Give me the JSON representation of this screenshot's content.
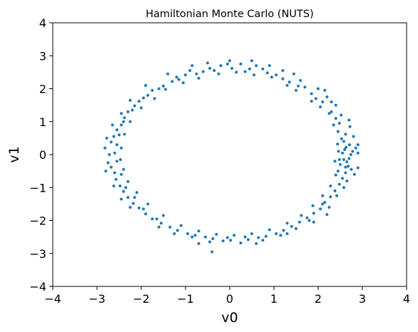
{
  "chart_data": {
    "type": "scatter",
    "title": "Hamiltonian Monte Carlo (NUTS)",
    "xlabel": "v0",
    "ylabel": "v1",
    "xlim": [
      -4,
      4
    ],
    "ylim": [
      -4,
      4
    ],
    "xticks": [
      "−4",
      "−3",
      "−2",
      "−1",
      "0",
      "1",
      "2",
      "3",
      "4"
    ],
    "yticks": [
      "−4",
      "−3",
      "−2",
      "−1",
      "0",
      "1",
      "2",
      "3",
      "4"
    ],
    "grid": false,
    "legend": "none",
    "marker_color": "#1f77b4",
    "description_of_distribution": null,
    "series": [
      {
        "points": [
          [
            2.74,
            0.0
          ],
          [
            2.71,
            0.3
          ],
          [
            2.62,
            0.62
          ],
          [
            2.48,
            0.95
          ],
          [
            2.3,
            1.3
          ],
          [
            2.1,
            1.6
          ],
          [
            1.85,
            1.85
          ],
          [
            1.55,
            2.08
          ],
          [
            1.2,
            2.3
          ],
          [
            0.85,
            2.48
          ],
          [
            0.45,
            2.6
          ],
          [
            0.05,
            2.62
          ],
          [
            -0.35,
            2.55
          ],
          [
            -0.75,
            2.45
          ],
          [
            -1.15,
            2.28
          ],
          [
            -1.5,
            2.08
          ],
          [
            -1.85,
            1.8
          ],
          [
            -2.15,
            1.48
          ],
          [
            -2.38,
            1.12
          ],
          [
            -2.55,
            0.75
          ],
          [
            -2.68,
            0.38
          ],
          [
            -2.72,
            0.0
          ],
          [
            -2.68,
            -0.38
          ],
          [
            -2.57,
            -0.75
          ],
          [
            -2.4,
            -1.12
          ],
          [
            -2.18,
            -1.48
          ],
          [
            -1.9,
            -1.8
          ],
          [
            -1.55,
            -2.08
          ],
          [
            -1.18,
            -2.3
          ],
          [
            -0.78,
            -2.45
          ],
          [
            -0.38,
            -2.55
          ],
          [
            0.02,
            -2.6
          ],
          [
            0.42,
            -2.58
          ],
          [
            0.82,
            -2.48
          ],
          [
            1.22,
            -2.3
          ],
          [
            1.58,
            -2.05
          ],
          [
            1.9,
            -1.78
          ],
          [
            2.15,
            -1.45
          ],
          [
            2.38,
            -1.1
          ],
          [
            2.55,
            -0.72
          ],
          [
            2.68,
            -0.35
          ],
          [
            2.85,
            0.2
          ],
          [
            2.58,
            -0.15
          ],
          [
            2.9,
            -0.4
          ],
          [
            2.52,
            1.2
          ],
          [
            2.2,
            1.75
          ],
          [
            1.7,
            2.05
          ],
          [
            1.35,
            2.2
          ],
          [
            0.6,
            2.7
          ],
          [
            0.25,
            2.75
          ],
          [
            -0.2,
            2.7
          ],
          [
            -0.6,
            2.52
          ],
          [
            -1.0,
            2.42
          ],
          [
            -1.3,
            2.22
          ],
          [
            -1.75,
            1.95
          ],
          [
            -2.05,
            1.62
          ],
          [
            -2.3,
            1.3
          ],
          [
            -2.45,
            0.9
          ],
          [
            -2.62,
            0.55
          ],
          [
            -2.82,
            0.2
          ],
          [
            -2.75,
            -0.25
          ],
          [
            -2.6,
            -0.55
          ],
          [
            -2.48,
            -0.95
          ],
          [
            -2.3,
            -1.3
          ],
          [
            -2.05,
            -1.62
          ],
          [
            -1.75,
            -1.95
          ],
          [
            -1.35,
            -2.2
          ],
          [
            -0.95,
            -2.4
          ],
          [
            -0.55,
            -2.5
          ],
          [
            -0.15,
            -2.62
          ],
          [
            0.25,
            -2.68
          ],
          [
            0.65,
            -2.52
          ],
          [
            1.05,
            -2.4
          ],
          [
            1.4,
            -2.18
          ],
          [
            1.75,
            -1.92
          ],
          [
            2.05,
            -1.65
          ],
          [
            2.28,
            -1.28
          ],
          [
            2.48,
            -0.9
          ],
          [
            2.62,
            -0.55
          ],
          [
            2.8,
            0.55
          ],
          [
            2.72,
            0.85
          ],
          [
            2.58,
            0.4
          ],
          [
            2.45,
            0.7
          ],
          [
            2.4,
            1.5
          ],
          [
            2.78,
            0.1
          ],
          [
            2.65,
            -0.22
          ],
          [
            2.9,
            0.3
          ],
          [
            2.6,
            0.15
          ],
          [
            2.5,
            -0.3
          ],
          [
            2.82,
            -0.6
          ],
          [
            2.45,
            -0.5
          ],
          [
            2.7,
            1.05
          ],
          [
            2.35,
            0.9
          ],
          [
            2.15,
            1.95
          ],
          [
            1.95,
            1.7
          ],
          [
            1.6,
            2.25
          ],
          [
            1.05,
            2.42
          ],
          [
            0.75,
            2.6
          ],
          [
            0.35,
            2.52
          ],
          [
            -0.05,
            2.75
          ],
          [
            -0.45,
            2.62
          ],
          [
            -0.9,
            2.55
          ],
          [
            -1.2,
            2.35
          ],
          [
            -1.6,
            2.0
          ],
          [
            -1.95,
            1.72
          ],
          [
            -2.2,
            1.35
          ],
          [
            -2.4,
            1.0
          ],
          [
            -2.5,
            0.6
          ],
          [
            -2.55,
            0.3
          ],
          [
            -2.6,
            0.05
          ],
          [
            -2.55,
            -0.2
          ],
          [
            -2.45,
            -0.6
          ],
          [
            -2.35,
            -1.0
          ],
          [
            -2.15,
            -1.3
          ],
          [
            -1.95,
            -1.65
          ],
          [
            -1.65,
            -1.95
          ],
          [
            -1.25,
            -2.4
          ],
          [
            -0.85,
            -2.5
          ],
          [
            -0.45,
            -2.65
          ],
          [
            -0.05,
            -2.52
          ],
          [
            0.35,
            -2.5
          ],
          [
            0.75,
            -2.6
          ],
          [
            1.15,
            -2.45
          ],
          [
            1.5,
            -2.25
          ],
          [
            1.8,
            -2.0
          ],
          [
            2.1,
            -1.5
          ],
          [
            2.25,
            -1.6
          ],
          [
            2.42,
            -1.25
          ],
          [
            2.58,
            -1.0
          ],
          [
            2.65,
            -0.8
          ],
          [
            2.75,
            -0.45
          ],
          [
            2.9,
            0.05
          ],
          [
            -2.25,
            1.65
          ],
          [
            -2.45,
            1.25
          ],
          [
            -2.65,
            0.9
          ],
          [
            -2.78,
            0.5
          ],
          [
            -2.8,
            -0.5
          ],
          [
            -2.62,
            -0.95
          ],
          [
            -2.45,
            -1.35
          ],
          [
            -2.25,
            -1.6
          ],
          [
            -1.6,
            -2.2
          ],
          [
            -0.7,
            -2.7
          ],
          [
            -0.4,
            -2.95
          ],
          [
            0.6,
            -2.7
          ],
          [
            1.3,
            -2.4
          ],
          [
            1.9,
            -2.05
          ],
          [
            2.2,
            -1.82
          ],
          [
            2.3,
            1.6
          ],
          [
            2.0,
            2.0
          ],
          [
            1.45,
            2.45
          ],
          [
            1.2,
            2.55
          ],
          [
            0.9,
            2.7
          ],
          [
            0.5,
            2.85
          ],
          [
            0.0,
            2.85
          ],
          [
            -0.5,
            2.78
          ],
          [
            -0.85,
            2.7
          ],
          [
            -1.4,
            2.45
          ],
          [
            -1.9,
            2.1
          ],
          [
            2.63,
            0.22
          ],
          [
            2.55,
            0.05
          ],
          [
            2.7,
            -0.12
          ],
          [
            2.62,
            -0.38
          ],
          [
            2.53,
            0.48
          ],
          [
            2.44,
            0.32
          ],
          [
            2.38,
            -0.2
          ],
          [
            2.4,
            1.1
          ],
          [
            2.25,
            1.25
          ],
          [
            2.05,
            1.45
          ],
          [
            1.85,
            1.62
          ],
          [
            1.5,
            1.95
          ],
          [
            1.3,
            2.1
          ],
          [
            0.95,
            2.35
          ],
          [
            0.55,
            2.42
          ],
          [
            0.15,
            2.5
          ],
          [
            -0.25,
            2.45
          ],
          [
            -0.7,
            2.32
          ],
          [
            -1.05,
            2.18
          ],
          [
            -1.45,
            1.98
          ],
          [
            -1.7,
            1.7
          ],
          [
            -2.0,
            1.42
          ],
          [
            -2.25,
            1.0
          ],
          [
            -2.38,
            0.62
          ],
          [
            -2.45,
            0.2
          ],
          [
            -2.47,
            -0.15
          ],
          [
            -2.4,
            -0.45
          ],
          [
            -2.3,
            -0.82
          ],
          [
            -2.1,
            -1.15
          ],
          [
            -1.85,
            -1.5
          ],
          [
            -1.5,
            -1.85
          ],
          [
            -1.1,
            -2.15
          ],
          [
            -0.7,
            -2.32
          ],
          [
            -0.3,
            -2.42
          ],
          [
            0.1,
            -2.45
          ],
          [
            0.5,
            -2.4
          ],
          [
            0.9,
            -2.28
          ],
          [
            1.3,
            -2.08
          ],
          [
            1.62,
            -1.85
          ],
          [
            1.88,
            -1.55
          ],
          [
            2.1,
            -1.25
          ],
          [
            2.28,
            -0.95
          ],
          [
            2.4,
            -0.62
          ],
          [
            2.48,
            -0.15
          ],
          [
            2.46,
            0.1
          ]
        ]
      }
    ]
  }
}
